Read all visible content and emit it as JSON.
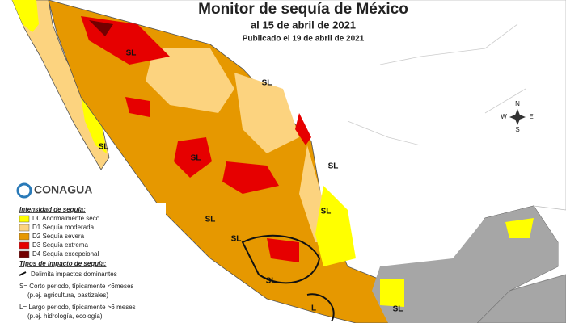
{
  "header": {
    "title": "Monitor de sequía de México",
    "subtitle": "al 15 de abril de 2021",
    "published": "Publicado el 19 de abril de 2021"
  },
  "logo": "CONAGUA",
  "compass": [
    "N",
    "W",
    "E",
    "S"
  ],
  "map_labels": [
    "SL",
    "SL",
    "SL",
    "SL",
    "SL",
    "SL",
    "SL",
    "SL",
    "SL",
    "L",
    "SL"
  ],
  "legend": {
    "intensity_title": "Intensidad de sequía:",
    "items": [
      {
        "label": "D0 Anormalmente seco",
        "color": "#ffff00"
      },
      {
        "label": "D1 Sequía moderada",
        "color": "#fcd37f"
      },
      {
        "label": "D2 Sequía severa",
        "color": "#e69800"
      },
      {
        "label": "D3 Sequía extrema",
        "color": "#e60000"
      },
      {
        "label": "D4 Sequía excepcional",
        "color": "#730000"
      }
    ],
    "impact_title": "Tipos de impacto de sequía:",
    "impact_lines": [
      "Delimita impactos dominantes",
      "S= Corto periodo, típicamente <6meses",
      "(p.ej. agricultura, pastizales)",
      "L= Largo periodo, típicamente >6 meses",
      "(p.ej. hidrología, ecología)"
    ]
  }
}
